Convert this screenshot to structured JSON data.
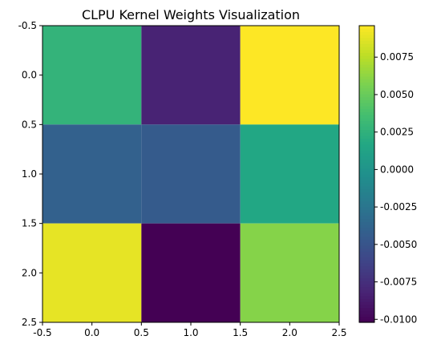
{
  "chart_data": {
    "type": "heatmap",
    "title": "CLPU Kernel Weights Visualization",
    "xlabel": "",
    "ylabel": "",
    "colormap": "viridis",
    "x_ticks": [
      "-0.5",
      "0.0",
      "0.5",
      "1.0",
      "1.5",
      "2.0",
      "2.5"
    ],
    "y_ticks": [
      "-0.5",
      "0.0",
      "0.5",
      "1.0",
      "1.5",
      "2.0",
      "2.5"
    ],
    "x_tick_values": [
      -0.5,
      0.0,
      0.5,
      1.0,
      1.5,
      2.0,
      2.5
    ],
    "y_tick_values": [
      -0.5,
      0.0,
      0.5,
      1.0,
      1.5,
      2.0,
      2.5
    ],
    "xlim": [
      -0.5,
      2.5
    ],
    "ylim": [
      2.5,
      -0.5
    ],
    "matrix": [
      [
        0.0027,
        -0.0082,
        0.0096
      ],
      [
        -0.004,
        -0.0045,
        0.0017
      ],
      [
        0.0089,
        -0.0102,
        0.006
      ]
    ],
    "colorbar": {
      "vmin": -0.0102,
      "vmax": 0.0096,
      "ticks": [
        "-0.0100",
        "-0.0075",
        "-0.0050",
        "-0.0025",
        "0.0000",
        "0.0025",
        "0.0050",
        "0.0075"
      ],
      "tick_values": [
        -0.01,
        -0.0075,
        -0.005,
        -0.0025,
        0.0,
        0.0025,
        0.005,
        0.0075
      ]
    }
  }
}
